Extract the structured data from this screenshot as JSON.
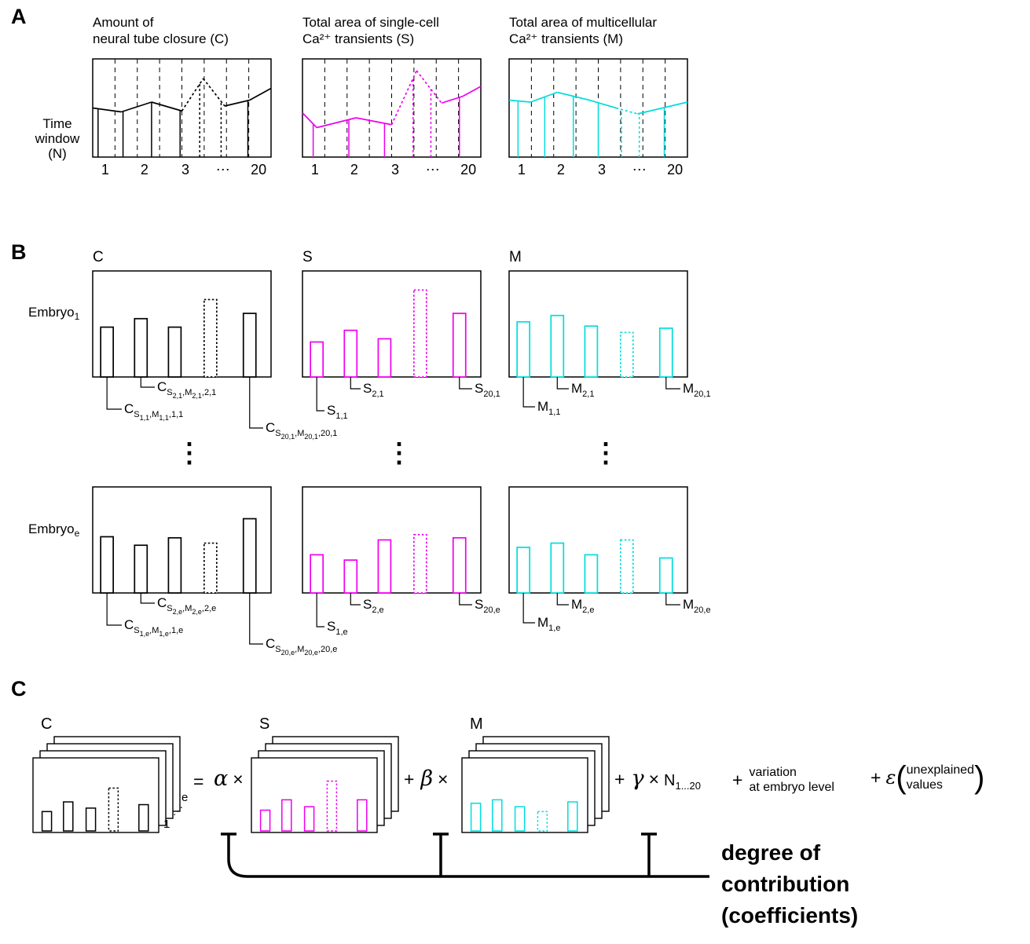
{
  "misc": {
    "vdots": "⋮"
  },
  "panelA": {
    "letter": "A",
    "time_axis_lines": [
      "Time",
      "window",
      "(N)"
    ],
    "ticks": [
      "1",
      "2",
      "3",
      "⋯",
      "20"
    ],
    "charts": [
      {
        "id": "C",
        "color": "#000000",
        "title_lines": [
          "Amount of",
          "neural tube closure (C)"
        ],
        "line": [
          [
            0,
            0.5
          ],
          [
            0.16,
            0.46
          ],
          [
            0.33,
            0.56
          ],
          [
            0.5,
            0.47
          ],
          [
            0.62,
            0.8
          ],
          [
            0.74,
            0.52
          ],
          [
            0.88,
            0.58
          ],
          [
            1,
            0.7
          ]
        ],
        "dotted_between": [
          0.5,
          0.74
        ],
        "verticals": [
          [
            0.03,
            0
          ],
          [
            0.17,
            0
          ],
          [
            0.33,
            0
          ],
          [
            0.49,
            0
          ],
          [
            0.6,
            1
          ],
          [
            0.72,
            1
          ],
          [
            0.87,
            0
          ]
        ]
      },
      {
        "id": "S",
        "color": "#ee00ee",
        "title_lines": [
          "Total area of single-cell",
          "Ca²⁺ transients (S)"
        ],
        "line": [
          [
            0,
            0.45
          ],
          [
            0.08,
            0.3
          ],
          [
            0.3,
            0.4
          ],
          [
            0.5,
            0.33
          ],
          [
            0.64,
            0.88
          ],
          [
            0.78,
            0.55
          ],
          [
            0.9,
            0.62
          ],
          [
            1,
            0.72
          ]
        ],
        "dotted_between": [
          0.5,
          0.78
        ],
        "verticals": [
          [
            0.06,
            0
          ],
          [
            0.26,
            0
          ],
          [
            0.46,
            0
          ],
          [
            0.62,
            1
          ],
          [
            0.72,
            1
          ],
          [
            0.88,
            0
          ]
        ]
      },
      {
        "id": "M",
        "color": "#00dddd",
        "title_lines": [
          "Total area of multicellular",
          "Ca²⁺ transients (M)"
        ],
        "line": [
          [
            0,
            0.58
          ],
          [
            0.12,
            0.56
          ],
          [
            0.27,
            0.66
          ],
          [
            0.45,
            0.58
          ],
          [
            0.6,
            0.5
          ],
          [
            0.72,
            0.44
          ],
          [
            0.86,
            0.5
          ],
          [
            1,
            0.56
          ]
        ],
        "dotted_between": [
          0.58,
          0.74
        ],
        "verticals": [
          [
            0.05,
            0
          ],
          [
            0.2,
            0
          ],
          [
            0.36,
            0
          ],
          [
            0.5,
            0
          ],
          [
            0.63,
            1
          ],
          [
            0.73,
            1
          ],
          [
            0.87,
            0
          ]
        ]
      }
    ]
  },
  "panelB": {
    "letter": "B",
    "col_letters": [
      "C",
      "S",
      "M"
    ],
    "bar_centers": [
      0.08,
      0.27,
      0.46,
      0.66,
      0.88
    ],
    "dotted_index": 3,
    "rows": [
      {
        "label_base": "Embryo",
        "label_sub": "1",
        "bars": [
          [
            0.47,
            0.55,
            0.47,
            0.73,
            0.6
          ],
          [
            0.33,
            0.44,
            0.36,
            0.82,
            0.6
          ],
          [
            0.52,
            0.58,
            0.48,
            0.42,
            0.46
          ]
        ],
        "labels": [
          [
            [
              [
                "C",
                0
              ],
              [
                "S",
                1
              ],
              [
                "2,1",
                2
              ],
              [
                ",M",
                1
              ],
              [
                "2,1",
                2
              ],
              [
                ",2,1",
                1
              ]
            ],
            [
              [
                "C",
                0
              ],
              [
                "S",
                1
              ],
              [
                "1,1",
                2
              ],
              [
                ",M",
                1
              ],
              [
                "1,1",
                2
              ],
              [
                ",1,1",
                1
              ]
            ],
            [
              [
                "C",
                0
              ],
              [
                "S",
                1
              ],
              [
                "20,1",
                2
              ],
              [
                ",M",
                1
              ],
              [
                "20,1",
                2
              ],
              [
                ",20,1",
                1
              ]
            ]
          ],
          [
            [
              [
                "S",
                0
              ],
              [
                "1,1",
                1
              ]
            ],
            [
              [
                "S",
                0
              ],
              [
                "2,1",
                1
              ]
            ],
            [
              [
                "S",
                0
              ],
              [
                "20,1",
                1
              ]
            ]
          ],
          [
            [
              [
                "M",
                0
              ],
              [
                "1,1",
                1
              ]
            ],
            [
              [
                "M",
                0
              ],
              [
                "2,1",
                1
              ]
            ],
            [
              [
                "M",
                0
              ],
              [
                "20,1",
                1
              ]
            ]
          ]
        ]
      },
      {
        "label_base": "Embryo",
        "label_sub": "e",
        "bars": [
          [
            0.53,
            0.45,
            0.52,
            0.47,
            0.7
          ],
          [
            0.36,
            0.31,
            0.5,
            0.55,
            0.52
          ],
          [
            0.43,
            0.47,
            0.36,
            0.5,
            0.33
          ]
        ],
        "labels": [
          [
            [
              [
                "C",
                0
              ],
              [
                "S",
                1
              ],
              [
                "2,e",
                2
              ],
              [
                ",M",
                1
              ],
              [
                "2,e",
                2
              ],
              [
                ",2,e",
                1
              ]
            ],
            [
              [
                "C",
                0
              ],
              [
                "S",
                1
              ],
              [
                "1,e",
                2
              ],
              [
                ",M",
                1
              ],
              [
                "1,e",
                2
              ],
              [
                ",1,e",
                1
              ]
            ],
            [
              [
                "C",
                0
              ],
              [
                "S",
                1
              ],
              [
                "20,e",
                2
              ],
              [
                ",M",
                1
              ],
              [
                "20,e",
                2
              ],
              [
                ",20,e",
                1
              ]
            ]
          ],
          [
            [
              [
                "S",
                0
              ],
              [
                "1,e",
                1
              ]
            ],
            [
              [
                "S",
                0
              ],
              [
                "2,e",
                1
              ]
            ],
            [
              [
                "S",
                0
              ],
              [
                "20,e",
                1
              ]
            ]
          ],
          [
            [
              [
                "M",
                0
              ],
              [
                "1,e",
                1
              ]
            ],
            [
              [
                "M",
                0
              ],
              [
                "2,e",
                1
              ]
            ],
            [
              [
                "M",
                0
              ],
              [
                "20,e",
                1
              ]
            ]
          ]
        ]
      }
    ]
  },
  "panelC": {
    "letter": "C",
    "stack_labels": [
      "C",
      "S",
      "M"
    ],
    "stack_bars": [
      [
        0.28,
        0.42,
        0.33,
        0.62,
        0.38
      ],
      [
        0.3,
        0.45,
        0.35,
        0.72,
        0.45
      ],
      [
        0.4,
        0.45,
        0.35,
        0.28,
        0.42
      ]
    ],
    "edge_labels": {
      "e": "e",
      "dots": "⋰",
      "one": "1"
    },
    "eq": {
      "equals": "=",
      "times": "×",
      "plus": "+",
      "alpha": "α",
      "beta": "β",
      "gamma": "γ",
      "n_base": "N",
      "n_sub": "1...20",
      "variation_lines": [
        "variation",
        "at embryo level"
      ],
      "epsilon": "ε",
      "paren_open": "(",
      "paren_close": ")",
      "unexplained_lines": [
        "unexplained",
        "values"
      ],
      "degree_lines": [
        "degree of",
        "contribution",
        "(coefficients)"
      ]
    }
  }
}
